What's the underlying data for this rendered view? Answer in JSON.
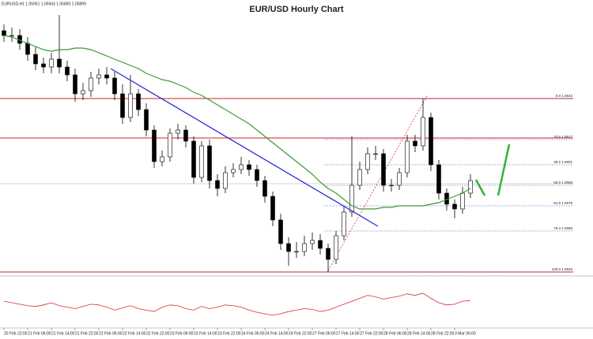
{
  "chart_data": {
    "type": "candlestick",
    "title": "EUR/USD Hourly Chart",
    "header": "EURUSD,H1  1.05951 1.05943 1.05893 1.05899",
    "categories": [
      "20 Feb 22:00",
      null,
      null,
      "21 Feb 06:00",
      null,
      null,
      "21 Feb 14:00",
      null,
      null,
      "21 Feb 22:00",
      null,
      null,
      "22 Feb 06:00",
      null,
      null,
      "22 Feb 14:00",
      null,
      null,
      "22 Feb 22:00",
      null,
      null,
      "23 Feb 06:00",
      null,
      null,
      "23 Feb 14:00",
      null,
      null,
      "23 Feb 22:00",
      null,
      null,
      "24 Feb 06:00",
      null,
      null,
      "24 Feb 14:00",
      null,
      null,
      "24 Feb 22:00",
      null,
      null,
      "27 Feb 06:00",
      null,
      null,
      "27 Feb 14:00",
      null,
      null,
      "27 Feb 22:00",
      null,
      null,
      "28 Feb 06:00",
      null,
      null,
      "28 Feb 14:00",
      null,
      null,
      "28 Feb 22:00",
      null,
      null,
      "3 Mar 06:00",
      null,
      null
    ],
    "open": [
      1.0686,
      1.0683,
      1.0683,
      1.0678,
      1.0671,
      1.0665,
      1.0663,
      1.0668,
      1.0663,
      1.0658,
      1.0646,
      1.0648,
      1.0656,
      1.0658,
      1.0656,
      1.0646,
      1.0631,
      1.0646,
      1.0636,
      1.0623,
      1.0603,
      1.0606,
      1.0621,
      1.0623,
      1.0616,
      1.0593,
      1.0613,
      1.0591,
      1.0586,
      1.0596,
      1.0598,
      1.0601,
      1.0598,
      1.0591,
      1.0581,
      1.0566,
      1.0551,
      1.0546,
      1.0546,
      1.0551,
      1.0553,
      1.0548,
      1.0541,
      1.0556,
      1.0571,
      1.0588,
      1.0598,
      1.0608,
      1.0608,
      1.0588,
      1.0588,
      1.0596,
      1.0616,
      1.0613,
      1.0631,
      1.0601,
      1.0583,
      1.0576,
      1.0573,
      1.0583
    ],
    "high": [
      1.069,
      1.0688,
      1.0687,
      1.0682,
      1.0676,
      1.0669,
      1.0672,
      1.0696,
      1.0667,
      1.0662,
      1.0653,
      1.066,
      1.0662,
      1.0663,
      1.066,
      1.0652,
      1.0658,
      1.0649,
      1.064,
      1.0626,
      1.061,
      1.0624,
      1.0627,
      1.0626,
      1.0619,
      1.0616,
      1.0617,
      1.0595,
      1.06,
      1.0602,
      1.0606,
      1.0604,
      1.0601,
      1.0594,
      1.0584,
      1.057,
      1.0555,
      1.0552,
      1.0556,
      1.0558,
      1.0557,
      1.0551,
      1.0559,
      1.0575,
      1.0619,
      1.0603,
      1.0612,
      1.0613,
      1.0611,
      1.0592,
      1.0599,
      1.062,
      1.062,
      1.0643,
      1.0634,
      1.0604,
      1.0586,
      1.0579,
      1.0587,
      1.0595
    ],
    "low": [
      1.0679,
      1.0679,
      1.0674,
      1.0667,
      1.0661,
      1.0659,
      1.0659,
      1.0659,
      1.0654,
      1.0641,
      1.0642,
      1.0644,
      1.0652,
      1.0652,
      1.0642,
      1.0627,
      1.0628,
      1.0632,
      1.0619,
      1.0599,
      1.06,
      1.0603,
      1.0617,
      1.0612,
      1.0589,
      1.059,
      1.0586,
      1.0581,
      1.0583,
      1.0593,
      1.0595,
      1.0594,
      1.0587,
      1.0577,
      1.0562,
      1.0547,
      1.0537,
      1.0542,
      1.0543,
      1.0547,
      1.0544,
      1.0533,
      1.0538,
      1.0553,
      1.0568,
      1.0585,
      1.0595,
      1.0604,
      1.0584,
      1.0584,
      1.0585,
      1.0593,
      1.0609,
      1.061,
      1.0597,
      1.0579,
      1.0572,
      1.0567,
      1.057,
      1.058
    ],
    "close": [
      1.0683,
      1.0683,
      1.0678,
      1.0671,
      1.0665,
      1.0663,
      1.0668,
      1.0663,
      1.0658,
      1.0646,
      1.0648,
      1.0656,
      1.0658,
      1.0656,
      1.0646,
      1.0631,
      1.0646,
      1.0636,
      1.0623,
      1.0603,
      1.0606,
      1.0621,
      1.0623,
      1.0616,
      1.0593,
      1.0613,
      1.0591,
      1.0586,
      1.0596,
      1.0598,
      1.0601,
      1.0598,
      1.0591,
      1.0581,
      1.0566,
      1.0551,
      1.0546,
      1.0546,
      1.0551,
      1.0553,
      1.0548,
      1.0541,
      1.0556,
      1.0571,
      1.0588,
      1.0598,
      1.0608,
      1.0608,
      1.0588,
      1.0588,
      1.0596,
      1.0616,
      1.0613,
      1.0631,
      1.0601,
      1.0583,
      1.0576,
      1.0573,
      1.0583,
      1.0591
    ],
    "ylim": [
      1.05305,
      1.0703
    ],
    "ma": {
      "color": "#3a9a3a",
      "values": [
        1.0683,
        1.0682,
        1.068,
        1.0678,
        1.0676,
        1.0674,
        1.0673,
        1.0674,
        1.0674,
        1.0675,
        1.0675,
        1.0674,
        1.0672,
        1.067,
        1.0668,
        1.0666,
        1.0664,
        1.0662,
        1.0659,
        1.0657,
        1.0655,
        1.0654,
        1.0652,
        1.065,
        1.0647,
        1.0645,
        1.0642,
        1.0639,
        1.0636,
        1.0633,
        1.063,
        1.0627,
        1.0623,
        1.0619,
        1.0615,
        1.0611,
        1.0607,
        1.0603,
        1.0599,
        1.0595,
        1.059,
        1.0586,
        1.0583,
        1.0579,
        1.0575,
        1.0573,
        1.0573,
        1.0573,
        1.0574,
        1.0574,
        1.0575,
        1.0575,
        1.0575,
        1.0575,
        1.0576,
        1.0577,
        1.0579,
        1.0581,
        1.0583,
        1.0586
      ]
    },
    "trendline": {
      "color": "#2b2bd6",
      "x": [
        13.5,
        47.3
      ],
      "values": [
        1.0662,
        1.0562
      ]
    },
    "hlines": {
      "color": "#d42020",
      "values": [
        1.0643,
        1.0618,
        1.0533
      ]
    },
    "price_line": 1.0589,
    "fib_levels": [
      {
        "value": 1.0643,
        "label": "0.0 1.0643"
      },
      {
        "value": 1.0617,
        "label": "23.6 1.0617"
      },
      {
        "value": 1.0601,
        "label": "38.2 1.0601"
      },
      {
        "value": 1.0588,
        "label": "50.0 1.0588"
      },
      {
        "value": 1.0575,
        "label": "61.8 1.0575"
      },
      {
        "value": 1.0559,
        "label": "76.4 1.0559"
      },
      {
        "value": 1.0533,
        "label": "100.0 1.0533"
      }
    ],
    "oscillator": {
      "color": "#d23030",
      "ylim": [
        20,
        80
      ],
      "values": [
        52,
        50,
        48,
        46,
        45,
        47,
        50,
        46,
        44,
        42,
        45,
        48,
        47,
        44,
        40,
        43,
        46,
        42,
        40,
        38,
        44,
        47,
        46,
        42,
        40,
        45,
        42,
        44,
        47,
        46,
        44,
        40,
        37,
        35,
        33,
        35,
        38,
        40,
        42,
        41,
        38,
        40,
        44,
        48,
        52,
        56,
        60,
        58,
        55,
        57,
        59,
        62,
        60,
        63,
        56,
        50,
        47,
        48,
        52,
        53
      ]
    }
  }
}
